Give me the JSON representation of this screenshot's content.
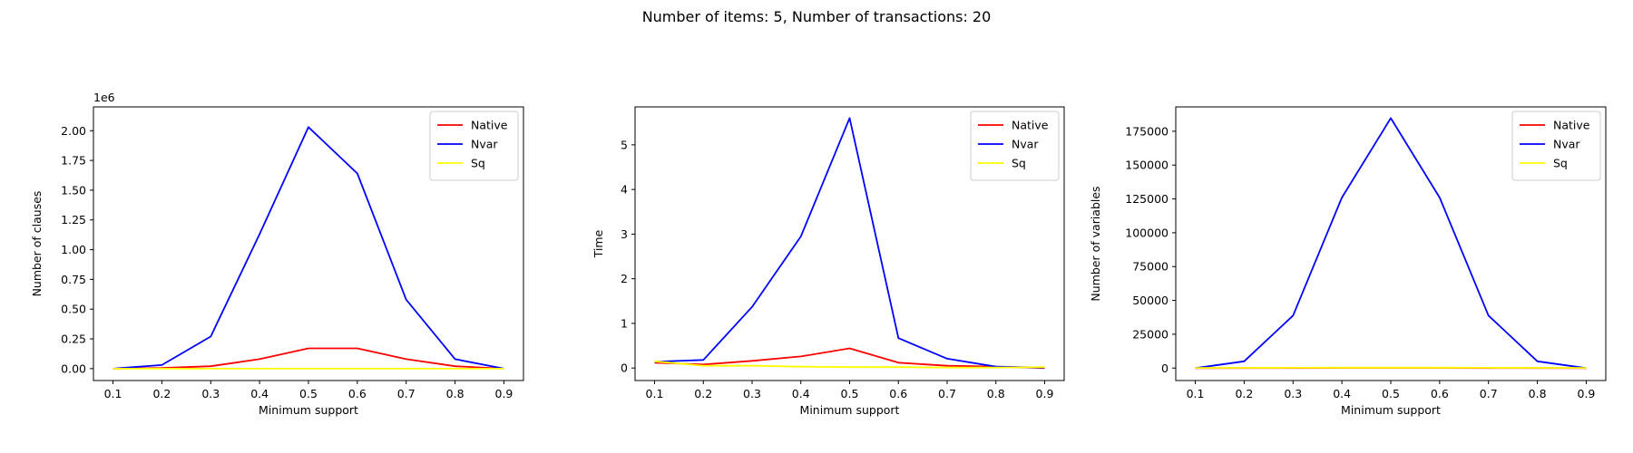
{
  "figure": {
    "title": "Number of items: 5, Number of transactions: 20"
  },
  "chart_data": [
    {
      "type": "line",
      "xlabel": "Minimum support",
      "ylabel": "Number of clauses",
      "y_offset_label": "1e6",
      "x": [
        0.1,
        0.2,
        0.3,
        0.4,
        0.5,
        0.6,
        0.7,
        0.8,
        0.9
      ],
      "xlim": [
        0.06,
        0.94
      ],
      "ylim": [
        -0.1,
        2.2
      ],
      "y_scale": 1000000,
      "x_ticks": [
        0.1,
        0.2,
        0.3,
        0.4,
        0.5,
        0.6,
        0.7,
        0.8,
        0.9
      ],
      "x_tick_labels": [
        "0.1",
        "0.2",
        "0.3",
        "0.4",
        "0.5",
        "0.6",
        "0.7",
        "0.8",
        "0.9"
      ],
      "y_ticks": [
        0,
        0.25,
        0.5,
        0.75,
        1.0,
        1.25,
        1.5,
        1.75,
        2.0
      ],
      "y_tick_labels": [
        "0.00",
        "0.25",
        "0.50",
        "0.75",
        "1.00",
        "1.25",
        "1.50",
        "1.75",
        "2.00"
      ],
      "grid": false,
      "legend": "top-right",
      "series": [
        {
          "name": "Native",
          "color": "#ff0000",
          "values": [
            0.0,
            0.005,
            0.02,
            0.08,
            0.17,
            0.17,
            0.08,
            0.02,
            0.0
          ]
        },
        {
          "name": "Nvar",
          "color": "#0000ff",
          "values": [
            0.0,
            0.03,
            0.27,
            1.13,
            2.03,
            1.64,
            0.58,
            0.08,
            0.0
          ]
        },
        {
          "name": "Sq",
          "color": "#ffff00",
          "values": [
            0.0,
            0.0,
            0.0,
            0.0,
            0.0,
            0.0,
            0.0,
            0.0,
            0.0
          ]
        }
      ]
    },
    {
      "type": "line",
      "xlabel": "Minimum support",
      "ylabel": "Time",
      "x": [
        0.1,
        0.2,
        0.3,
        0.4,
        0.5,
        0.6,
        0.7,
        0.8,
        0.9
      ],
      "xlim": [
        0.06,
        0.94
      ],
      "ylim": [
        -0.28,
        5.85
      ],
      "x_ticks": [
        0.1,
        0.2,
        0.3,
        0.4,
        0.5,
        0.6,
        0.7,
        0.8,
        0.9
      ],
      "x_tick_labels": [
        "0.1",
        "0.2",
        "0.3",
        "0.4",
        "0.5",
        "0.6",
        "0.7",
        "0.8",
        "0.9"
      ],
      "y_ticks": [
        0,
        1,
        2,
        3,
        4,
        5
      ],
      "y_tick_labels": [
        "0",
        "1",
        "2",
        "3",
        "4",
        "5"
      ],
      "grid": false,
      "legend": "top-right",
      "series": [
        {
          "name": "Native",
          "color": "#ff0000",
          "values": [
            0.12,
            0.08,
            0.16,
            0.26,
            0.44,
            0.12,
            0.05,
            0.03,
            0.0
          ]
        },
        {
          "name": "Nvar",
          "color": "#0000ff",
          "values": [
            0.14,
            0.18,
            1.37,
            2.95,
            5.6,
            0.67,
            0.21,
            0.03,
            0.01
          ]
        },
        {
          "name": "Sq",
          "color": "#ffff00",
          "values": [
            0.15,
            0.05,
            0.05,
            0.03,
            0.02,
            0.02,
            0.01,
            0.01,
            0.02
          ]
        }
      ]
    },
    {
      "type": "line",
      "xlabel": "Minimum support",
      "ylabel": "Number of variables",
      "x": [
        0.1,
        0.2,
        0.3,
        0.4,
        0.5,
        0.6,
        0.7,
        0.8,
        0.9
      ],
      "xlim": [
        0.06,
        0.94
      ],
      "ylim": [
        -9200,
        193000
      ],
      "x_ticks": [
        0.1,
        0.2,
        0.3,
        0.4,
        0.5,
        0.6,
        0.7,
        0.8,
        0.9
      ],
      "x_tick_labels": [
        "0.1",
        "0.2",
        "0.3",
        "0.4",
        "0.5",
        "0.6",
        "0.7",
        "0.8",
        "0.9"
      ],
      "y_ticks": [
        0,
        25000,
        50000,
        75000,
        100000,
        125000,
        150000,
        175000
      ],
      "y_tick_labels": [
        "0",
        "25000",
        "50000",
        "75000",
        "100000",
        "125000",
        "150000",
        "175000"
      ],
      "grid": false,
      "legend": "top-right",
      "series": [
        {
          "name": "Native",
          "color": "#ff0000",
          "values": [
            5,
            20,
            50,
            100,
            126,
            100,
            50,
            20,
            5
          ]
        },
        {
          "name": "Nvar",
          "color": "#0000ff",
          "values": [
            0,
            5000,
            38800,
            126000,
            184700,
            126000,
            38800,
            5000,
            0
          ]
        },
        {
          "name": "Sq",
          "color": "#ffff00",
          "values": [
            120,
            180,
            240,
            300,
            320,
            300,
            240,
            180,
            120
          ]
        }
      ]
    }
  ]
}
